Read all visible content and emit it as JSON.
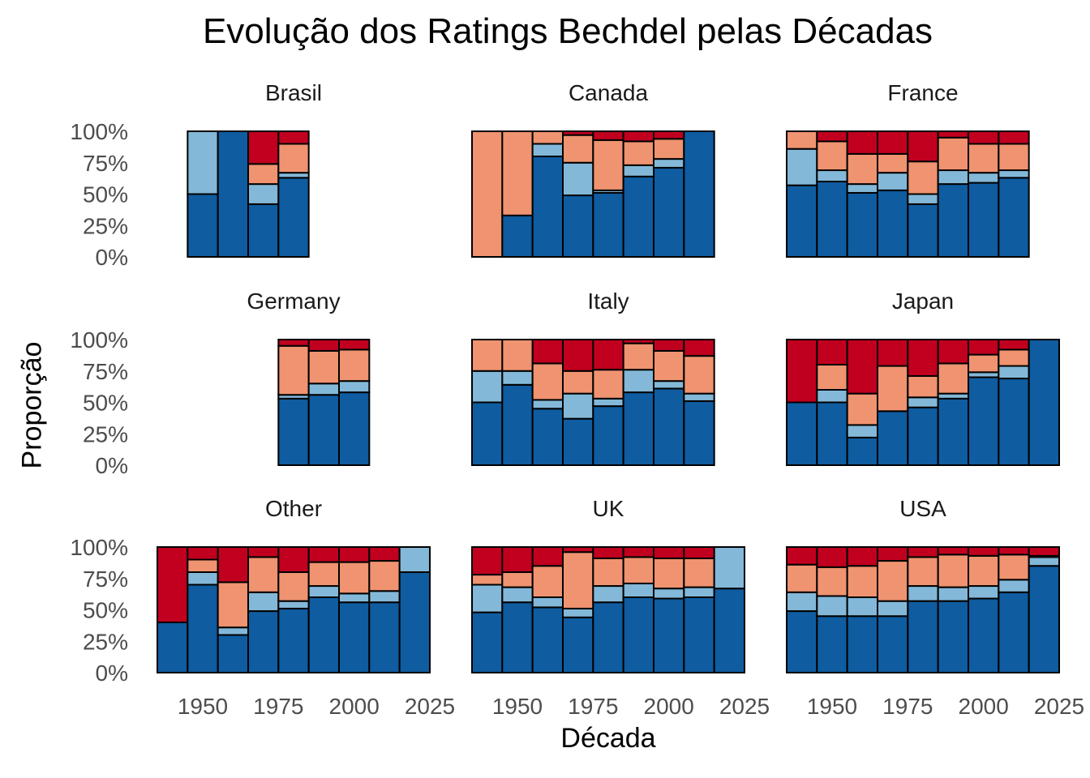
{
  "chart_data": {
    "type": "bar",
    "title": "Evolução dos Ratings Bechdel pelas Décadas",
    "xlabel": "Década",
    "ylabel": "Proporção",
    "ylim": [
      0,
      1
    ],
    "y_ticks": [
      "0%",
      "25%",
      "50%",
      "75%",
      "100%"
    ],
    "x_ticks": [
      "1950",
      "1975",
      "2000",
      "2025"
    ],
    "x_tick_values": [
      1950,
      1975,
      2000,
      2025
    ],
    "categories": [
      1940,
      1950,
      1960,
      1970,
      1980,
      1990,
      2000,
      2010,
      2020
    ],
    "stack_colors": [
      "#0F5CA0",
      "#83B8D8",
      "#EF9370",
      "#C1001F"
    ],
    "stack_order_bottom_to_top": [
      "rating 3",
      "rating 2",
      "rating 1",
      "rating 0"
    ],
    "legend": "none",
    "grid": false,
    "facets": [
      {
        "name": "Brasil",
        "bars": [
          {
            "x": 1950,
            "values": [
              0.5,
              0.5,
              0,
              0
            ]
          },
          {
            "x": 1960,
            "values": [
              1.0,
              0,
              0,
              0
            ]
          },
          {
            "x": 1970,
            "values": [
              0.42,
              0.16,
              0.16,
              0.26
            ]
          },
          {
            "x": 1980,
            "values": [
              0.63,
              0.04,
              0.23,
              0.1
            ]
          }
        ]
      },
      {
        "name": "Canada",
        "bars": [
          {
            "x": 1940,
            "values": [
              0,
              0,
              1.0,
              0
            ]
          },
          {
            "x": 1950,
            "values": [
              0.33,
              0,
              0.67,
              0
            ]
          },
          {
            "x": 1960,
            "values": [
              0.8,
              0.1,
              0.1,
              0
            ]
          },
          {
            "x": 1970,
            "values": [
              0.49,
              0.26,
              0.22,
              0.03
            ]
          },
          {
            "x": 1980,
            "values": [
              0.51,
              0.02,
              0.4,
              0.07
            ]
          },
          {
            "x": 1990,
            "values": [
              0.64,
              0.09,
              0.19,
              0.08
            ]
          },
          {
            "x": 2000,
            "values": [
              0.71,
              0.07,
              0.16,
              0.06
            ]
          },
          {
            "x": 2010,
            "values": [
              1.0,
              0,
              0,
              0
            ]
          }
        ]
      },
      {
        "name": "France",
        "bars": [
          {
            "x": 1940,
            "values": [
              0.57,
              0.29,
              0.14,
              0
            ]
          },
          {
            "x": 1950,
            "values": [
              0.6,
              0.09,
              0.23,
              0.08
            ]
          },
          {
            "x": 1960,
            "values": [
              0.51,
              0.07,
              0.24,
              0.18
            ]
          },
          {
            "x": 1970,
            "values": [
              0.53,
              0.14,
              0.15,
              0.18
            ]
          },
          {
            "x": 1980,
            "values": [
              0.42,
              0.08,
              0.26,
              0.24
            ]
          },
          {
            "x": 1990,
            "values": [
              0.58,
              0.11,
              0.26,
              0.05
            ]
          },
          {
            "x": 2000,
            "values": [
              0.59,
              0.08,
              0.23,
              0.1
            ]
          },
          {
            "x": 2010,
            "values": [
              0.63,
              0.06,
              0.21,
              0.1
            ]
          }
        ]
      },
      {
        "name": "Germany",
        "bars": [
          {
            "x": 1980,
            "values": [
              0.53,
              0.03,
              0.39,
              0.05
            ]
          },
          {
            "x": 1990,
            "values": [
              0.56,
              0.09,
              0.26,
              0.09
            ]
          },
          {
            "x": 2000,
            "values": [
              0.58,
              0.09,
              0.25,
              0.08
            ]
          }
        ]
      },
      {
        "name": "Italy",
        "bars": [
          {
            "x": 1940,
            "values": [
              0.5,
              0.25,
              0.25,
              0
            ]
          },
          {
            "x": 1950,
            "values": [
              0.64,
              0.11,
              0.25,
              0
            ]
          },
          {
            "x": 1960,
            "values": [
              0.45,
              0.07,
              0.29,
              0.19
            ]
          },
          {
            "x": 1970,
            "values": [
              0.37,
              0.2,
              0.18,
              0.25
            ]
          },
          {
            "x": 1980,
            "values": [
              0.47,
              0.06,
              0.23,
              0.24
            ]
          },
          {
            "x": 1990,
            "values": [
              0.58,
              0.18,
              0.21,
              0.03
            ]
          },
          {
            "x": 2000,
            "values": [
              0.61,
              0.06,
              0.24,
              0.09
            ]
          },
          {
            "x": 2010,
            "values": [
              0.51,
              0.06,
              0.3,
              0.13
            ]
          }
        ]
      },
      {
        "name": "Japan",
        "bars": [
          {
            "x": 1940,
            "values": [
              0.5,
              0,
              0,
              0.5
            ]
          },
          {
            "x": 1950,
            "values": [
              0.5,
              0.1,
              0.2,
              0.2
            ]
          },
          {
            "x": 1960,
            "values": [
              0.22,
              0.1,
              0.25,
              0.43
            ]
          },
          {
            "x": 1970,
            "values": [
              0.43,
              0,
              0.36,
              0.21
            ]
          },
          {
            "x": 1980,
            "values": [
              0.46,
              0.08,
              0.17,
              0.29
            ]
          },
          {
            "x": 1990,
            "values": [
              0.53,
              0.04,
              0.24,
              0.19
            ]
          },
          {
            "x": 2000,
            "values": [
              0.7,
              0.04,
              0.14,
              0.12
            ]
          },
          {
            "x": 2010,
            "values": [
              0.69,
              0.1,
              0.13,
              0.08
            ]
          },
          {
            "x": 2020,
            "values": [
              1.0,
              0,
              0,
              0
            ]
          }
        ]
      },
      {
        "name": "Other",
        "bars": [
          {
            "x": 1940,
            "values": [
              0.4,
              0,
              0,
              0.6
            ]
          },
          {
            "x": 1950,
            "values": [
              0.7,
              0.1,
              0.1,
              0.1
            ]
          },
          {
            "x": 1960,
            "values": [
              0.3,
              0.06,
              0.36,
              0.28
            ]
          },
          {
            "x": 1970,
            "values": [
              0.49,
              0.15,
              0.28,
              0.08
            ]
          },
          {
            "x": 1980,
            "values": [
              0.51,
              0.06,
              0.23,
              0.2
            ]
          },
          {
            "x": 1990,
            "values": [
              0.6,
              0.09,
              0.19,
              0.12
            ]
          },
          {
            "x": 2000,
            "values": [
              0.56,
              0.07,
              0.25,
              0.12
            ]
          },
          {
            "x": 2010,
            "values": [
              0.56,
              0.09,
              0.24,
              0.11
            ]
          },
          {
            "x": 2020,
            "values": [
              0.8,
              0.2,
              0,
              0
            ]
          }
        ]
      },
      {
        "name": "UK",
        "bars": [
          {
            "x": 1940,
            "values": [
              0.48,
              0.22,
              0.08,
              0.22
            ]
          },
          {
            "x": 1950,
            "values": [
              0.56,
              0.12,
              0.12,
              0.2
            ]
          },
          {
            "x": 1960,
            "values": [
              0.52,
              0.08,
              0.25,
              0.15
            ]
          },
          {
            "x": 1970,
            "values": [
              0.44,
              0.07,
              0.45,
              0.04
            ]
          },
          {
            "x": 1980,
            "values": [
              0.56,
              0.13,
              0.22,
              0.09
            ]
          },
          {
            "x": 1990,
            "values": [
              0.6,
              0.11,
              0.21,
              0.08
            ]
          },
          {
            "x": 2000,
            "values": [
              0.59,
              0.08,
              0.24,
              0.09
            ]
          },
          {
            "x": 2010,
            "values": [
              0.6,
              0.08,
              0.23,
              0.09
            ]
          },
          {
            "x": 2020,
            "values": [
              0.67,
              0.33,
              0,
              0
            ]
          }
        ]
      },
      {
        "name": "USA",
        "bars": [
          {
            "x": 1940,
            "values": [
              0.49,
              0.15,
              0.22,
              0.14
            ]
          },
          {
            "x": 1950,
            "values": [
              0.45,
              0.16,
              0.23,
              0.16
            ]
          },
          {
            "x": 1960,
            "values": [
              0.45,
              0.15,
              0.25,
              0.15
            ]
          },
          {
            "x": 1970,
            "values": [
              0.45,
              0.12,
              0.32,
              0.11
            ]
          },
          {
            "x": 1980,
            "values": [
              0.57,
              0.12,
              0.23,
              0.08
            ]
          },
          {
            "x": 1990,
            "values": [
              0.57,
              0.11,
              0.26,
              0.06
            ]
          },
          {
            "x": 2000,
            "values": [
              0.59,
              0.1,
              0.24,
              0.07
            ]
          },
          {
            "x": 2010,
            "values": [
              0.64,
              0.1,
              0.2,
              0.06
            ]
          },
          {
            "x": 2020,
            "values": [
              0.85,
              0.07,
              0.01,
              0.07
            ]
          }
        ]
      }
    ]
  }
}
